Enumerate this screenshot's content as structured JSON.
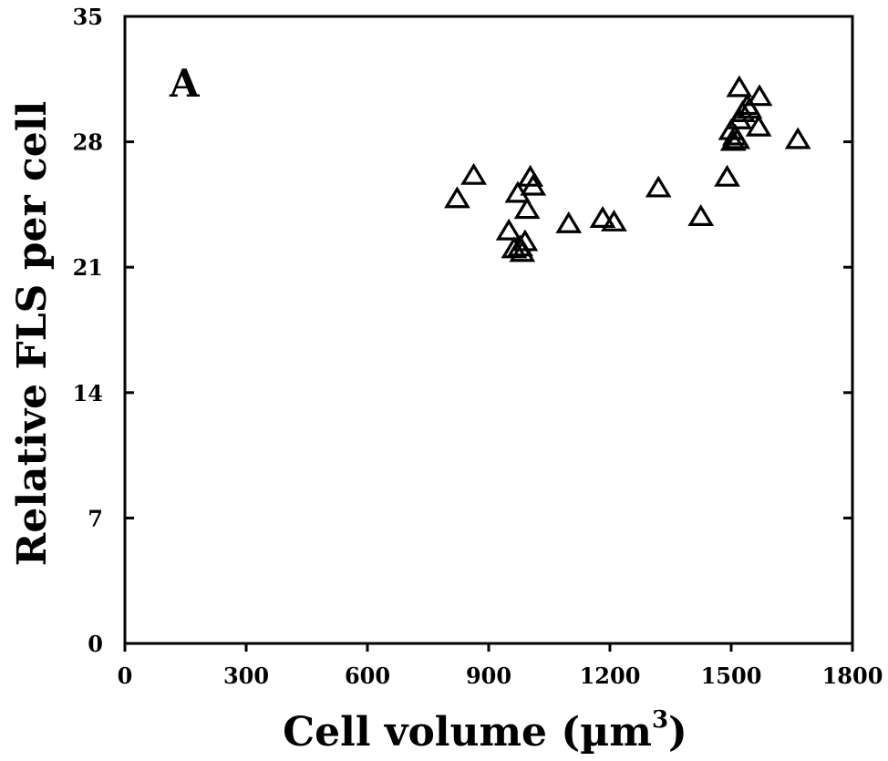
{
  "chart_data": {
    "type": "scatter",
    "panel_label": "A",
    "xlabel": "Cell volume (µm",
    "xlabel_superscript": "3",
    "xlabel_close": ")",
    "ylabel": "Relative FLS per cell",
    "xlim": [
      0,
      1800
    ],
    "ylim": [
      0,
      35
    ],
    "x_ticks": [
      0,
      300,
      600,
      900,
      1200,
      1500,
      1800
    ],
    "x_tick_labels": [
      "0",
      "300",
      "600",
      "900",
      "1200",
      "1500",
      "1800"
    ],
    "y_ticks": [
      0,
      7,
      14,
      21,
      28,
      35
    ],
    "y_tick_labels": [
      "0",
      "7",
      "14",
      "21",
      "28",
      "35"
    ],
    "grid": false,
    "marker": "open-triangle",
    "series": [
      {
        "points": [
          [
            822,
            24.8
          ],
          [
            863,
            26.1
          ],
          [
            950,
            23.0
          ],
          [
            963,
            22.0
          ],
          [
            972,
            25.1
          ],
          [
            978,
            22.1
          ],
          [
            983,
            21.8
          ],
          [
            990,
            22.4
          ],
          [
            995,
            24.2
          ],
          [
            1003,
            26.0
          ],
          [
            1010,
            25.5
          ],
          [
            1098,
            23.4
          ],
          [
            1182,
            23.7
          ],
          [
            1210,
            23.5
          ],
          [
            1320,
            25.4
          ],
          [
            1425,
            23.8
          ],
          [
            1490,
            26.0
          ],
          [
            1500,
            28.6
          ],
          [
            1505,
            28.0
          ],
          [
            1510,
            28.3
          ],
          [
            1515,
            28.1
          ],
          [
            1520,
            29.2
          ],
          [
            1520,
            31.0
          ],
          [
            1528,
            29.6
          ],
          [
            1540,
            30.0
          ],
          [
            1545,
            29.8
          ],
          [
            1568,
            28.8
          ],
          [
            1570,
            30.5
          ],
          [
            1665,
            28.1
          ]
        ]
      }
    ]
  }
}
